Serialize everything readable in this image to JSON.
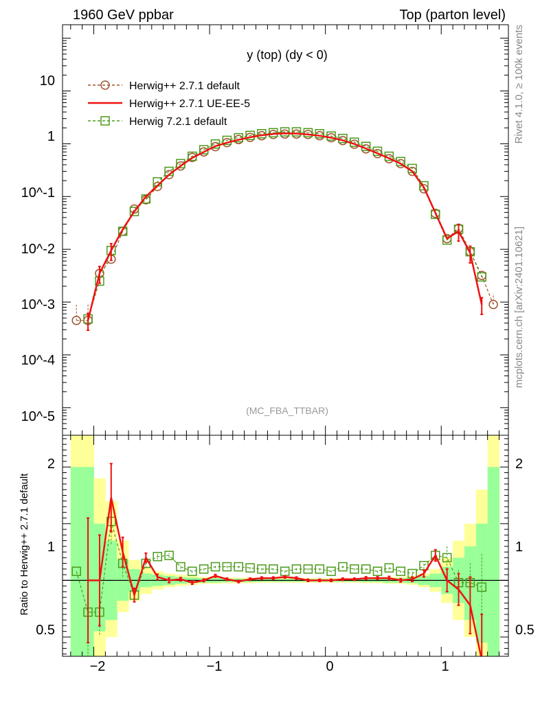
{
  "header": {
    "left": "1960 GeV ppbar",
    "right": "Top (parton level)"
  },
  "side": {
    "rivet": "Rivet 4.1.0, ≥ 100k events",
    "mcplots": "mcplots.cern.ch [arXiv:2401.10621]"
  },
  "colors": {
    "herwig271_default": "#a0522d",
    "herwig271_ueee5": "#ee1111",
    "herwig721_default": "#4a9a1a",
    "band_yellow": "#ffff99",
    "band_green": "#99ff99"
  },
  "chart_data": [
    {
      "type": "line",
      "panel": "main",
      "title": "y (top) (dy < 0)",
      "xlabel": "",
      "ylabel": "",
      "yscale": "log",
      "xlim": [
        -2.27,
        1.58
      ],
      "ylim": [
        3e-06,
        180
      ],
      "yticklabels": [
        "10",
        "1",
        "10^-1",
        "10^-2",
        "10^-3",
        "10^-4",
        "10^-5"
      ],
      "annotation": "(MC_FBA_TTBAR)",
      "legend_position": "top-left",
      "x": [
        -2.15,
        -2.05,
        -1.95,
        -1.85,
        -1.75,
        -1.65,
        -1.55,
        -1.45,
        -1.35,
        -1.25,
        -1.15,
        -1.05,
        -0.95,
        -0.85,
        -0.75,
        -0.65,
        -0.55,
        -0.45,
        -0.35,
        -0.25,
        -0.15,
        -0.05,
        0.05,
        0.15,
        0.25,
        0.35,
        0.45,
        0.55,
        0.65,
        0.75,
        0.85,
        0.95,
        1.05,
        1.15,
        1.25,
        1.35,
        1.45
      ],
      "series": [
        {
          "name": "Herwig++ 2.7.1 default",
          "style": "dashed-circle",
          "values": [
            0.00045,
            0.00045,
            0.0035,
            0.0065,
            0.022,
            0.058,
            0.087,
            0.155,
            0.26,
            0.38,
            0.55,
            0.7,
            0.88,
            1.05,
            1.2,
            1.32,
            1.42,
            1.5,
            1.53,
            1.53,
            1.5,
            1.42,
            1.3,
            1.15,
            0.98,
            0.8,
            0.65,
            0.52,
            0.42,
            0.3,
            0.14,
            0.048,
            0.016,
            0.025,
            0.009,
            0.0032,
            0.0009
          ]
        },
        {
          "name": "Herwig++ 2.7.1 UE-EE-5",
          "style": "solid",
          "values": [
            null,
            0.00045,
            0.0035,
            0.0095,
            0.024,
            0.052,
            0.1,
            0.16,
            0.26,
            0.38,
            0.54,
            0.7,
            0.9,
            1.05,
            1.19,
            1.33,
            1.45,
            1.54,
            1.58,
            1.56,
            1.5,
            1.42,
            1.3,
            1.16,
            0.99,
            0.81,
            0.66,
            0.53,
            0.42,
            0.3,
            0.15,
            0.049,
            0.016,
            0.022,
            0.0085,
            0.0009,
            null
          ]
        },
        {
          "name": "Herwig 7.2.1 default",
          "style": "dashed-square",
          "values": [
            null,
            0.00048,
            0.0025,
            0.0095,
            0.022,
            0.052,
            0.09,
            0.19,
            0.3,
            0.42,
            0.58,
            0.77,
            0.99,
            1.16,
            1.3,
            1.44,
            1.55,
            1.62,
            1.68,
            1.68,
            1.62,
            1.55,
            1.4,
            1.26,
            1.07,
            0.89,
            0.72,
            0.58,
            0.46,
            0.34,
            0.16,
            0.046,
            0.015,
            0.024,
            0.009,
            0.003,
            null
          ]
        }
      ]
    },
    {
      "type": "line",
      "panel": "ratio",
      "ylabel": "Ratio to Herwig++ 2.7.1 default",
      "xlim": [
        -2.27,
        1.58
      ],
      "ylim": [
        0.33,
        2.28
      ],
      "xticklabels": [
        "−2",
        "−1",
        "0",
        "1"
      ],
      "yticklabels": [
        "2",
        "1",
        "0.5"
      ],
      "x": [
        -2.15,
        -2.05,
        -1.95,
        -1.85,
        -1.75,
        -1.65,
        -1.55,
        -1.45,
        -1.35,
        -1.25,
        -1.15,
        -1.05,
        -0.95,
        -0.85,
        -0.75,
        -0.65,
        -0.55,
        -0.45,
        -0.35,
        -0.25,
        -0.15,
        -0.05,
        0.05,
        0.15,
        0.25,
        0.35,
        0.45,
        0.55,
        0.65,
        0.75,
        0.85,
        0.95,
        1.05,
        1.15,
        1.25,
        1.35,
        1.45
      ],
      "bands": {
        "yellow": [
          [
            2.5,
            0.3
          ],
          [
            2.5,
            0.3
          ],
          [
            1.9,
            0.3
          ],
          [
            1.7,
            0.5
          ],
          [
            1.35,
            0.72
          ],
          [
            1.18,
            0.82
          ],
          [
            1.12,
            0.88
          ],
          [
            1.08,
            0.92
          ],
          [
            1.06,
            0.94
          ],
          [
            1.05,
            0.95
          ],
          [
            1.04,
            0.96
          ],
          [
            1.03,
            0.97
          ],
          [
            1.03,
            0.97
          ],
          [
            1.025,
            0.975
          ],
          [
            1.025,
            0.975
          ],
          [
            1.025,
            0.975
          ],
          [
            1.02,
            0.98
          ],
          [
            1.02,
            0.98
          ],
          [
            1.02,
            0.98
          ],
          [
            1.02,
            0.98
          ],
          [
            1.02,
            0.98
          ],
          [
            1.02,
            0.98
          ],
          [
            1.02,
            0.98
          ],
          [
            1.02,
            0.98
          ],
          [
            1.02,
            0.98
          ],
          [
            1.025,
            0.975
          ],
          [
            1.025,
            0.975
          ],
          [
            1.03,
            0.97
          ],
          [
            1.03,
            0.97
          ],
          [
            1.04,
            0.96
          ],
          [
            1.06,
            0.94
          ],
          [
            1.1,
            0.9
          ],
          [
            1.2,
            0.8
          ],
          [
            1.35,
            0.65
          ],
          [
            1.5,
            0.5
          ],
          [
            1.8,
            0.3
          ],
          [
            2.5,
            0.3
          ]
        ],
        "green": [
          [
            2.0,
            0.3
          ],
          [
            2.0,
            0.3
          ],
          [
            1.5,
            0.55
          ],
          [
            1.35,
            0.65
          ],
          [
            1.18,
            0.82
          ],
          [
            1.1,
            0.9
          ],
          [
            1.06,
            0.94
          ],
          [
            1.05,
            0.95
          ],
          [
            1.04,
            0.96
          ],
          [
            1.03,
            0.97
          ],
          [
            1.025,
            0.975
          ],
          [
            1.02,
            0.98
          ],
          [
            1.02,
            0.98
          ],
          [
            1.015,
            0.985
          ],
          [
            1.015,
            0.985
          ],
          [
            1.015,
            0.985
          ],
          [
            1.012,
            0.988
          ],
          [
            1.012,
            0.988
          ],
          [
            1.012,
            0.988
          ],
          [
            1.012,
            0.988
          ],
          [
            1.012,
            0.988
          ],
          [
            1.012,
            0.988
          ],
          [
            1.012,
            0.988
          ],
          [
            1.012,
            0.988
          ],
          [
            1.012,
            0.988
          ],
          [
            1.015,
            0.985
          ],
          [
            1.015,
            0.985
          ],
          [
            1.02,
            0.98
          ],
          [
            1.02,
            0.98
          ],
          [
            1.025,
            0.975
          ],
          [
            1.04,
            0.96
          ],
          [
            1.06,
            0.94
          ],
          [
            1.12,
            0.88
          ],
          [
            1.2,
            0.8
          ],
          [
            1.3,
            0.65
          ],
          [
            1.5,
            0.45
          ],
          [
            2.0,
            0.3
          ]
        ]
      },
      "series": [
        {
          "name": "Herwig++ 2.7.1 UE-EE-5",
          "style": "solid",
          "values": [
            null,
            1.0,
            1.0,
            1.73,
            1.25,
            0.87,
            1.2,
            1.03,
            1.0,
            1.01,
            0.98,
            1.0,
            1.04,
            1.01,
            0.99,
            1.01,
            1.02,
            1.02,
            1.03,
            1.02,
            1.0,
            1.0,
            1.0,
            1.01,
            1.01,
            1.02,
            1.02,
            1.02,
            1.0,
            1.01,
            1.06,
            1.22,
            1.0,
            0.92,
            0.78,
            0.3,
            null
          ],
          "errors": [
            null,
            0.55,
            0.4,
            0.3,
            0.13,
            0.06,
            0.04,
            0.025,
            0.02,
            0.015,
            0.015,
            0.012,
            0.012,
            0.01,
            0.01,
            0.01,
            0.01,
            0.01,
            0.01,
            0.01,
            0.01,
            0.01,
            0.01,
            0.01,
            0.01,
            0.012,
            0.012,
            0.015,
            0.015,
            0.02,
            0.03,
            0.05,
            0.1,
            0.14,
            0.25,
            0.4,
            null
          ]
        },
        {
          "name": "Herwig 7.2.1 default",
          "style": "dashed-square",
          "values": [
            1.08,
            0.72,
            0.72,
            1.52,
            1.15,
            0.87,
            1.15,
            1.21,
            1.22,
            1.12,
            1.08,
            1.1,
            1.12,
            1.12,
            1.12,
            1.11,
            1.1,
            1.1,
            1.08,
            1.1,
            1.1,
            1.1,
            1.08,
            1.12,
            1.1,
            1.1,
            1.08,
            1.11,
            1.08,
            1.06,
            1.13,
            1.22,
            1.2,
            0.98,
            0.98,
            0.94,
            null
          ],
          "errors": [
            null,
            0.55,
            0.2,
            0.2,
            0.12,
            0.06,
            0.04,
            0.025,
            0.02,
            0.018,
            0.015,
            0.014,
            0.012,
            0.012,
            0.012,
            0.012,
            0.012,
            0.012,
            0.012,
            0.012,
            0.012,
            0.012,
            0.012,
            0.012,
            0.012,
            0.014,
            0.014,
            0.015,
            0.015,
            0.02,
            0.03,
            0.05,
            0.1,
            0.12,
            0.18,
            0.3,
            null
          ]
        }
      ]
    }
  ]
}
